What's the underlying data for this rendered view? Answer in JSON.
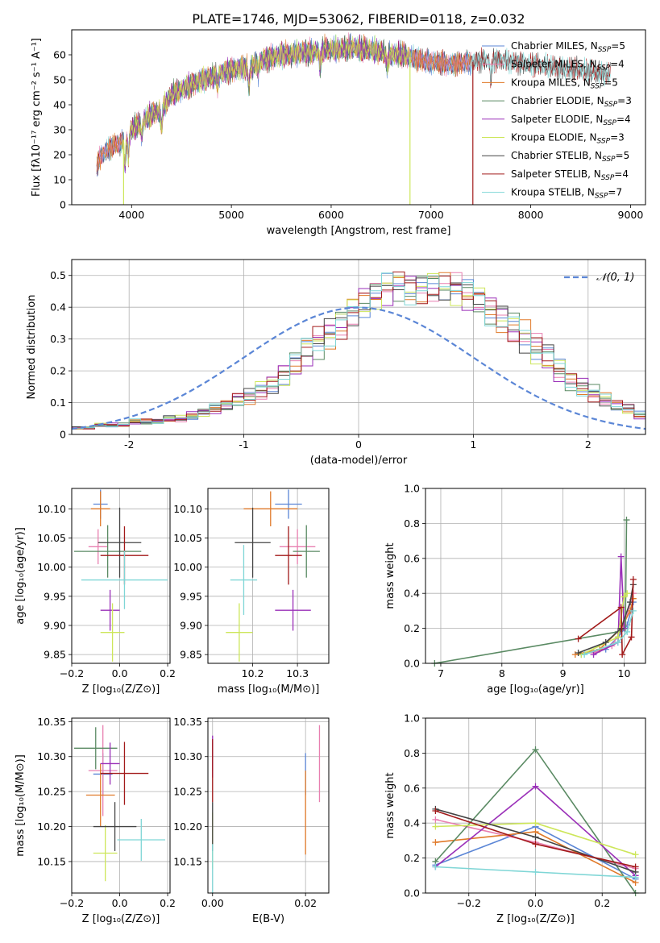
{
  "figure": {
    "title": "PLATE=1746, MJD=53062, FIBERID=0118, z=0.032"
  },
  "colors": {
    "Chabrier MILES": "#5b86d6",
    "Salpeter MILES": "#e87fb0",
    "Kroupa MILES": "#e07a2a",
    "Chabrier ELODIE": "#5a8a63",
    "Salpeter ELODIE": "#9a2fb8",
    "Kroupa ELODIE": "#cde65a",
    "Chabrier STELIB": "#444444",
    "Salpeter STELIB": "#a21a1a",
    "Kroupa STELIB": "#7fd6d6",
    "gaussian": "#5b86d6"
  },
  "chart_data": [
    {
      "id": "spectrum",
      "type": "line",
      "xlabel": "wavelength [Angstrom, rest frame]",
      "ylabel": "Flux [fλ10⁻¹⁷ erg cm⁻² s⁻¹ A⁻¹]",
      "xlim": [
        3400,
        9150
      ],
      "ylim": [
        0,
        70
      ],
      "xticks": [
        4000,
        5000,
        6000,
        7000,
        8000,
        9000
      ],
      "yticks": [
        0,
        10,
        20,
        30,
        40,
        50,
        60
      ],
      "grid": false,
      "legend_position": "top-right",
      "continuum": {
        "x": [
          3650,
          3700,
          3800,
          3900,
          4000,
          4100,
          4200,
          4300,
          4400,
          4500,
          4600,
          4700,
          4800,
          4900,
          5000,
          5100,
          5200,
          5300,
          5400,
          5500,
          5600,
          5700,
          5800,
          5900,
          6000,
          6100,
          6200,
          6300,
          6400,
          6500,
          6600,
          6700,
          6800,
          6900,
          7000,
          7100,
          7200,
          7300,
          7400,
          7500,
          7600,
          7700,
          7800,
          7900,
          8000,
          8100,
          8200,
          8300,
          8400,
          8500,
          8600,
          8700,
          8800,
          8850
        ],
        "y": [
          15,
          20,
          23,
          25,
          30,
          33,
          36,
          38,
          44,
          46,
          48,
          50,
          51,
          53,
          54,
          55,
          55,
          58,
          59,
          60,
          60,
          61,
          61,
          62,
          62,
          62,
          63,
          62,
          62,
          61,
          60,
          60,
          59,
          58,
          57,
          57,
          56,
          57,
          57,
          58,
          58,
          58,
          57,
          57,
          56,
          56,
          55,
          55,
          54,
          54,
          53,
          53,
          52,
          52
        ]
      },
      "series": [
        {
          "name": "Chabrier MILES",
          "nssp": "5"
        },
        {
          "name": "Salpeter MILES",
          "nssp": "4"
        },
        {
          "name": "Kroupa MILES",
          "nssp": "5"
        },
        {
          "name": "Chabrier ELODIE",
          "nssp": "3"
        },
        {
          "name": "Salpeter ELODIE",
          "nssp": "4"
        },
        {
          "name": "Kroupa ELODIE",
          "nssp": "3"
        },
        {
          "name": "Chabrier STELIB",
          "nssp": "5"
        },
        {
          "name": "Salpeter STELIB",
          "nssp": "4"
        },
        {
          "name": "Kroupa STELIB",
          "nssp": "7"
        }
      ],
      "model_ranges": {
        "MILES": [
          3650,
          7400
        ],
        "ELODIE": [
          3900,
          6800
        ],
        "STELIB": [
          3650,
          8800
        ]
      },
      "dropouts": [
        3920,
        6790,
        7420
      ]
    },
    {
      "id": "residuals",
      "type": "line",
      "xlabel": "(data-model)/error",
      "ylabel": "Normed distribution",
      "xlim": [
        -2.5,
        2.5
      ],
      "ylim": [
        0,
        0.55
      ],
      "xticks": [
        -2,
        -1,
        0,
        1,
        2
      ],
      "yticks": [
        0.0,
        0.1,
        0.2,
        0.3,
        0.4,
        0.5
      ],
      "grid": true,
      "legend_position": "top-right",
      "legend_label": "𝒩(0, 1)",
      "bin_width": 0.1,
      "bin_start": -2.5,
      "hist_base": [
        0.02,
        0.02,
        0.03,
        0.03,
        0.03,
        0.04,
        0.04,
        0.04,
        0.05,
        0.05,
        0.06,
        0.07,
        0.08,
        0.09,
        0.11,
        0.12,
        0.14,
        0.16,
        0.19,
        0.22,
        0.26,
        0.29,
        0.32,
        0.35,
        0.39,
        0.42,
        0.44,
        0.46,
        0.47,
        0.46,
        0.46,
        0.47,
        0.47,
        0.46,
        0.44,
        0.42,
        0.39,
        0.37,
        0.34,
        0.31,
        0.27,
        0.24,
        0.2,
        0.17,
        0.15,
        0.13,
        0.11,
        0.09,
        0.08,
        0.06
      ]
    },
    {
      "id": "age-vs-Z",
      "type": "scatter",
      "xlabel": "Z [log₁₀(Z/Z⊙)]",
      "ylabel": "age  [log₁₀(age/yr)]",
      "xlim": [
        -0.2,
        0.21
      ],
      "ylim": [
        9.835,
        10.135
      ],
      "xticks": [
        -0.2,
        0.0,
        0.2
      ],
      "xticklabels": [
        "−0.2",
        "0.0",
        "0.2"
      ],
      "yticks": [
        9.85,
        9.9,
        9.95,
        10.0,
        10.05,
        10.1
      ],
      "yticklabels": [
        "9.85",
        "9.90",
        "9.95",
        "10.00",
        "10.05",
        "10.10"
      ],
      "grid": true,
      "points": [
        {
          "series": "Chabrier MILES",
          "x": -0.08,
          "xerr": 0.03,
          "y": 10.108,
          "yerr": 0.025
        },
        {
          "series": "Salpeter MILES",
          "x": -0.09,
          "xerr": 0.04,
          "y": 10.035,
          "yerr": 0.03
        },
        {
          "series": "Kroupa MILES",
          "x": -0.08,
          "xerr": 0.04,
          "y": 10.1,
          "yerr": 0.03
        },
        {
          "series": "Chabrier ELODIE",
          "x": -0.05,
          "xerr": 0.14,
          "y": 10.027,
          "yerr": 0.045
        },
        {
          "series": "Salpeter ELODIE",
          "x": -0.04,
          "xerr": 0.04,
          "y": 9.926,
          "yerr": 0.035
        },
        {
          "series": "Kroupa ELODIE",
          "x": -0.03,
          "xerr": 0.05,
          "y": 9.888,
          "yerr": 0.05
        },
        {
          "series": "Chabrier STELIB",
          "x": 0.0,
          "xerr": 0.09,
          "y": 10.042,
          "yerr": 0.06
        },
        {
          "series": "Salpeter STELIB",
          "x": 0.02,
          "xerr": 0.1,
          "y": 10.02,
          "yerr": 0.05
        },
        {
          "series": "Kroupa STELIB",
          "x": 0.02,
          "xerr": 0.18,
          "y": 9.978,
          "yerr": 0.05
        }
      ]
    },
    {
      "id": "age-vs-mass",
      "type": "scatter",
      "xlabel": "mass [log₁₀(M/M⊙)]",
      "ylabel": "",
      "xlim": [
        10.1,
        10.37
      ],
      "ylim": [
        9.835,
        10.135
      ],
      "xticks": [
        10.2,
        10.3
      ],
      "xticklabels": [
        "10.2",
        "10.3"
      ],
      "yticks": [
        9.85,
        9.9,
        9.95,
        10.0,
        10.05,
        10.1
      ],
      "yticklabels": [
        "9.85",
        "9.90",
        "9.95",
        "10.00",
        "10.05",
        "10.10"
      ],
      "grid": true,
      "points": [
        {
          "series": "Chabrier MILES",
          "x": 10.28,
          "xerr": 0.03,
          "y": 10.108,
          "yerr": 0.025
        },
        {
          "series": "Salpeter MILES",
          "x": 10.3,
          "xerr": 0.04,
          "y": 10.035,
          "yerr": 0.03
        },
        {
          "series": "Kroupa MILES",
          "x": 10.24,
          "xerr": 0.06,
          "y": 10.1,
          "yerr": 0.03
        },
        {
          "series": "Chabrier ELODIE",
          "x": 10.32,
          "xerr": 0.03,
          "y": 10.027,
          "yerr": 0.045
        },
        {
          "series": "Salpeter ELODIE",
          "x": 10.29,
          "xerr": 0.04,
          "y": 9.926,
          "yerr": 0.035
        },
        {
          "series": "Kroupa ELODIE",
          "x": 10.17,
          "xerr": 0.03,
          "y": 9.888,
          "yerr": 0.05
        },
        {
          "series": "Chabrier STELIB",
          "x": 10.2,
          "xerr": 0.04,
          "y": 10.042,
          "yerr": 0.06
        },
        {
          "series": "Salpeter STELIB",
          "x": 10.28,
          "xerr": 0.03,
          "y": 10.02,
          "yerr": 0.05
        },
        {
          "series": "Kroupa STELIB",
          "x": 10.18,
          "xerr": 0.03,
          "y": 9.978,
          "yerr": 0.06
        }
      ]
    },
    {
      "id": "mass-weight-vs-age",
      "type": "line",
      "xlabel": "age  [log₁₀(age/yr)]",
      "ylabel": "mass weight",
      "xlim": [
        6.75,
        10.35
      ],
      "ylim": [
        0.0,
        1.0
      ],
      "xticks": [
        7,
        8,
        9,
        10
      ],
      "yticks": [
        0.0,
        0.2,
        0.4,
        0.6,
        0.8,
        1.0
      ],
      "yticklabels": [
        "0.0",
        "0.2",
        "0.4",
        "0.6",
        "0.8",
        "1.0"
      ],
      "grid": true,
      "lines": [
        {
          "series": "Chabrier MILES",
          "x": [
            9.3,
            9.7,
            9.9,
            10.05,
            10.15
          ],
          "y": [
            0.05,
            0.08,
            0.15,
            0.22,
            0.35
          ]
        },
        {
          "series": "Salpeter MILES",
          "x": [
            9.5,
            9.8,
            10.0,
            10.15
          ],
          "y": [
            0.06,
            0.1,
            0.22,
            0.4
          ]
        },
        {
          "series": "Kroupa MILES",
          "x": [
            9.2,
            9.6,
            9.95,
            10.1,
            10.15
          ],
          "y": [
            0.05,
            0.08,
            0.2,
            0.3,
            0.37
          ]
        },
        {
          "series": "Chabrier ELODIE",
          "x": [
            6.9,
            9.9,
            10.02,
            10.04
          ],
          "y": [
            0.0,
            0.18,
            0.2,
            0.82
          ]
        },
        {
          "series": "Salpeter ELODIE",
          "x": [
            9.5,
            9.9,
            9.95,
            10.0
          ],
          "y": [
            0.05,
            0.12,
            0.61,
            0.2
          ]
        },
        {
          "series": "Kroupa ELODIE",
          "x": [
            9.3,
            9.9,
            10.0,
            10.05
          ],
          "y": [
            0.05,
            0.15,
            0.38,
            0.4
          ]
        },
        {
          "series": "Chabrier STELIB",
          "x": [
            9.25,
            9.7,
            9.95,
            10.1,
            10.15
          ],
          "y": [
            0.06,
            0.12,
            0.2,
            0.35,
            0.45
          ]
        },
        {
          "series": "Salpeter STELIB",
          "x": [
            9.25,
            9.95,
            9.97,
            10.12,
            10.15
          ],
          "y": [
            0.14,
            0.32,
            0.05,
            0.15,
            0.48
          ]
        },
        {
          "series": "Kroupa STELIB",
          "x": [
            9.35,
            9.9,
            10.05,
            10.15
          ],
          "y": [
            0.05,
            0.12,
            0.18,
            0.3
          ]
        }
      ]
    },
    {
      "id": "mass-vs-Z",
      "type": "scatter",
      "xlabel": "Z [log₁₀(Z/Z⊙)]",
      "ylabel": "mass [log₁₀(M/M⊙)]",
      "xlim": [
        -0.2,
        0.21
      ],
      "ylim": [
        10.105,
        10.355
      ],
      "xticks": [
        -0.2,
        0.0,
        0.2
      ],
      "xticklabels": [
        "−0.2",
        "0.0",
        "0.2"
      ],
      "yticks": [
        10.15,
        10.2,
        10.25,
        10.3,
        10.35
      ],
      "yticklabels": [
        "10.15",
        "10.20",
        "10.25",
        "10.30",
        "10.35"
      ],
      "grid": true,
      "points": [
        {
          "series": "Chabrier MILES",
          "x": -0.07,
          "xerr": 0.04,
          "y": 10.275,
          "yerr": 0.03
        },
        {
          "series": "Salpeter MILES",
          "x": -0.07,
          "xerr": 0.06,
          "y": 10.28,
          "yerr": 0.065
        },
        {
          "series": "Kroupa MILES",
          "x": -0.08,
          "xerr": 0.06,
          "y": 10.245,
          "yerr": 0.045
        },
        {
          "series": "Chabrier ELODIE",
          "x": -0.1,
          "xerr": 0.09,
          "y": 10.312,
          "yerr": 0.03
        },
        {
          "series": "Salpeter ELODIE",
          "x": -0.04,
          "xerr": 0.04,
          "y": 10.29,
          "yerr": 0.03
        },
        {
          "series": "Kroupa ELODIE",
          "x": -0.06,
          "xerr": 0.05,
          "y": 10.162,
          "yerr": 0.04
        },
        {
          "series": "Chabrier STELIB",
          "x": -0.02,
          "xerr": 0.09,
          "y": 10.2,
          "yerr": 0.035
        },
        {
          "series": "Salpeter STELIB",
          "x": 0.02,
          "xerr": 0.1,
          "y": 10.276,
          "yerr": 0.045
        },
        {
          "series": "Kroupa STELIB",
          "x": 0.09,
          "xerr": 0.1,
          "y": 10.181,
          "yerr": 0.03
        }
      ]
    },
    {
      "id": "mass-vs-EBV",
      "type": "scatter",
      "xlabel": "E(B-V)",
      "ylabel": "",
      "xlim": [
        -0.001,
        0.025
      ],
      "ylim": [
        10.105,
        10.355
      ],
      "xticks": [
        0.0,
        0.02
      ],
      "xticklabels": [
        "0.00",
        "0.02"
      ],
      "yticks": [
        10.15,
        10.2,
        10.25,
        10.3,
        10.35
      ],
      "yticklabels": [
        "10.15",
        "10.20",
        "10.25",
        "10.30",
        "10.35"
      ],
      "grid": true,
      "points": [
        {
          "series": "Chabrier MILES",
          "x": 0.02,
          "y": 10.275,
          "yerr": 0.03
        },
        {
          "series": "Salpeter MILES",
          "x": 0.023,
          "y": 10.29,
          "yerr": 0.055
        },
        {
          "series": "Kroupa MILES",
          "x": 0.02,
          "y": 10.22,
          "yerr": 0.06
        },
        {
          "series": "Chabrier ELODIE",
          "x": 0.0,
          "y": 10.3,
          "yerr": 0.02
        },
        {
          "series": "Salpeter ELODIE",
          "x": 0.0,
          "y": 10.3,
          "yerr": 0.03
        },
        {
          "series": "Kroupa ELODIE",
          "x": 0.0,
          "y": 10.18,
          "yerr": 0.04
        },
        {
          "series": "Chabrier STELIB",
          "x": 0.0,
          "y": 10.2,
          "yerr": 0.035
        },
        {
          "series": "Salpeter STELIB",
          "x": 0.0,
          "y": 10.28,
          "yerr": 0.045
        },
        {
          "series": "Kroupa STELIB",
          "x": 0.0,
          "y": 10.14,
          "yerr": 0.035
        }
      ]
    },
    {
      "id": "mass-weight-vs-Z",
      "type": "line",
      "xlabel": "Z [log₁₀(Z/Z⊙)]",
      "ylabel": "mass weight",
      "xlim": [
        -0.33,
        0.33
      ],
      "ylim": [
        0.0,
        1.0
      ],
      "xticks": [
        -0.2,
        0.0,
        0.2
      ],
      "xticklabels": [
        "−0.2",
        "0.0",
        "0.2"
      ],
      "yticks": [
        0.0,
        0.2,
        0.4,
        0.6,
        0.8,
        1.0
      ],
      "yticklabels": [
        "0.0",
        "0.2",
        "0.4",
        "0.6",
        "0.8",
        "1.0"
      ],
      "grid": true,
      "lines": [
        {
          "series": "Chabrier MILES",
          "x": [
            -0.3,
            0.0,
            0.3
          ],
          "y": [
            0.16,
            0.38,
            0.08
          ]
        },
        {
          "series": "Salpeter MILES",
          "x": [
            -0.3,
            0.0,
            0.3
          ],
          "y": [
            0.42,
            0.29,
            0.14
          ]
        },
        {
          "series": "Kroupa MILES",
          "x": [
            -0.3,
            0.0,
            0.3
          ],
          "y": [
            0.29,
            0.35,
            0.06
          ]
        },
        {
          "series": "Chabrier ELODIE",
          "x": [
            -0.3,
            0.0,
            0.3
          ],
          "y": [
            0.18,
            0.82,
            0.0
          ]
        },
        {
          "series": "Salpeter ELODIE",
          "x": [
            -0.3,
            0.0,
            0.3
          ],
          "y": [
            0.15,
            0.61,
            0.1
          ]
        },
        {
          "series": "Kroupa ELODIE",
          "x": [
            -0.3,
            0.0,
            0.3
          ],
          "y": [
            0.38,
            0.4,
            0.22
          ]
        },
        {
          "series": "Chabrier STELIB",
          "x": [
            -0.3,
            0.0,
            0.3
          ],
          "y": [
            0.48,
            0.32,
            0.12
          ]
        },
        {
          "series": "Salpeter STELIB",
          "x": [
            -0.3,
            0.0,
            0.3
          ],
          "y": [
            0.47,
            0.28,
            0.15
          ]
        },
        {
          "series": "Kroupa STELIB",
          "x": [
            -0.3,
            0.0,
            0.3
          ],
          "y": [
            0.15,
            0.12,
            0.09
          ]
        }
      ]
    }
  ]
}
